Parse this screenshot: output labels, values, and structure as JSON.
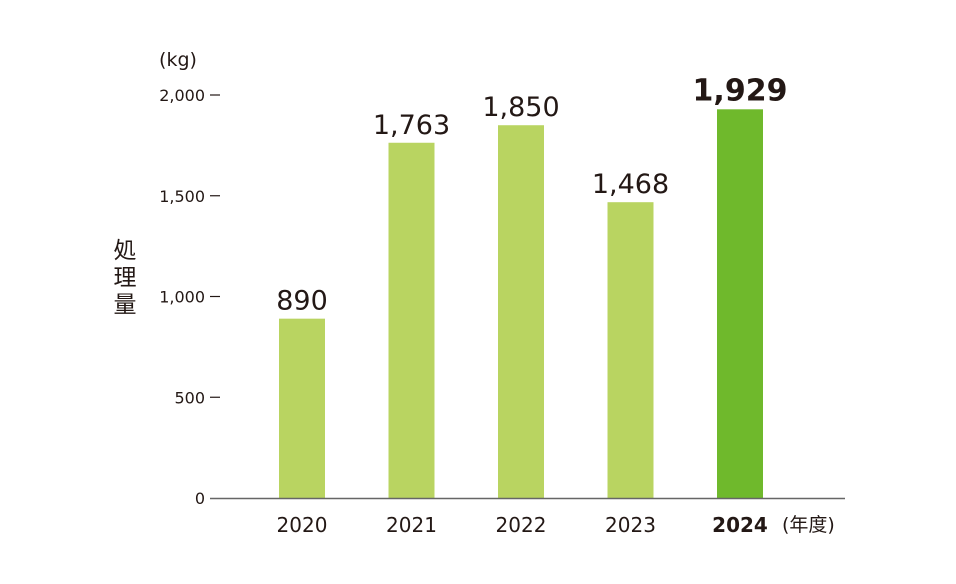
{
  "chart_data": {
    "type": "bar",
    "title": "",
    "unit_label": "(kg)",
    "ylabel": "処理量",
    "xlabel_suffix": "(年度)",
    "categories": [
      "2020",
      "2021",
      "2022",
      "2023",
      "2024"
    ],
    "values": [
      890,
      1763,
      1850,
      1468,
      1929
    ],
    "value_labels": [
      "890",
      "1,763",
      "1,850",
      "1,468",
      "1,929"
    ],
    "highlight_index": 4,
    "ylim": [
      0,
      2000
    ],
    "yticks": [
      0,
      500,
      1000,
      1500,
      2000
    ],
    "ytick_labels": [
      "0",
      "500",
      "1,000",
      "1,500",
      "2,000"
    ],
    "grid": false,
    "colors": {
      "bar": "#b9d461",
      "highlight": "#6fb92c",
      "axis": "#666666"
    }
  }
}
